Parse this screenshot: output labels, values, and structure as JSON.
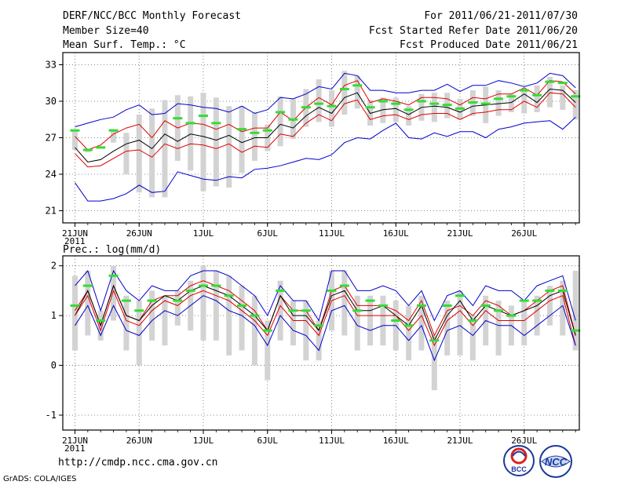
{
  "header": {
    "title": "DERF/NCC/BCC Monthly Forecast",
    "member": "Member Size=40",
    "variable": "Mean Surf. Temp.: °C",
    "period": "For 2011/06/21-2011/07/30",
    "started": "Fcst Started Refer Date 2011/06/20",
    "produced": "Fcst Produced Date 2011/06/21"
  },
  "footer": {
    "url": "http://cmdp.ncc.cma.gov.cn",
    "grads": "GrADS: COLA/IGES",
    "logo_bcc_text": "BCC",
    "logo_ncc_text": "NCC"
  },
  "colors": {
    "mean": "#000000",
    "spread": "#e00000",
    "extreme": "#0000cc",
    "bar": "#d3d3d3",
    "obs": "#33dd33",
    "grid": "#666666"
  },
  "chart_data": [
    {
      "type": "line",
      "title": "Mean Surf. Temp.: °C",
      "x_ticks": [
        "21JUN",
        "26JUN",
        "1JUL",
        "6JUL",
        "11JUL",
        "16JUL",
        "21JUL",
        "26JUL"
      ],
      "x_year_label": "2011",
      "y_ticks": [
        "21",
        "24",
        "27",
        "30",
        "33"
      ],
      "ylim": [
        20,
        34
      ],
      "days": 40,
      "series": [
        {
          "name": "ensemble max",
          "color": "#0000cc",
          "values": [
            27.9,
            28.2,
            28.5,
            28.7,
            29.3,
            29.7,
            28.9,
            29.0,
            29.8,
            29.7,
            29.5,
            29.4,
            29.1,
            29.6,
            29.0,
            29.3,
            30.3,
            30.2,
            30.6,
            31.2,
            31.0,
            32.3,
            32.1,
            30.9,
            30.9,
            30.7,
            30.7,
            30.9,
            30.9,
            31.4,
            30.8,
            31.3,
            31.3,
            31.7,
            31.5,
            31.2,
            31.5,
            32.3,
            32.1,
            31.1
          ]
        },
        {
          "name": "upper spread",
          "color": "#e00000",
          "values": [
            27.1,
            26.0,
            26.4,
            27.3,
            27.8,
            28.1,
            27.0,
            28.4,
            27.8,
            28.2,
            28.1,
            27.7,
            28.1,
            27.5,
            27.8,
            27.8,
            29.1,
            28.4,
            29.5,
            30.3,
            29.7,
            31.3,
            31.7,
            29.9,
            30.2,
            30.0,
            29.7,
            30.3,
            30.3,
            30.2,
            29.7,
            30.3,
            30.2,
            30.6,
            30.6,
            31.1,
            30.5,
            31.7,
            31.6,
            30.6
          ]
        },
        {
          "name": "ensemble mean",
          "color": "#000000",
          "values": [
            26.2,
            25.0,
            25.2,
            25.9,
            26.5,
            26.8,
            26.1,
            27.3,
            26.7,
            27.3,
            27.1,
            26.8,
            27.2,
            26.6,
            27.0,
            27.0,
            28.1,
            27.8,
            28.8,
            29.5,
            29.0,
            30.3,
            30.7,
            29.0,
            29.3,
            29.4,
            28.9,
            29.5,
            29.6,
            29.5,
            29.1,
            29.6,
            29.7,
            29.8,
            29.9,
            30.6,
            29.9,
            31.0,
            30.9,
            29.9
          ]
        },
        {
          "name": "lower spread",
          "color": "#e00000",
          "values": [
            25.7,
            24.6,
            24.7,
            25.3,
            25.9,
            26.0,
            25.4,
            26.5,
            26.1,
            26.5,
            26.4,
            26.1,
            26.5,
            25.8,
            26.3,
            26.2,
            27.3,
            27.1,
            28.2,
            28.9,
            28.4,
            29.8,
            30.1,
            28.5,
            28.8,
            28.9,
            28.5,
            28.9,
            29.0,
            29.0,
            28.5,
            29.0,
            29.1,
            29.3,
            29.3,
            30.0,
            29.5,
            30.7,
            30.6,
            29.5
          ]
        },
        {
          "name": "ensemble min",
          "color": "#0000cc",
          "values": [
            23.3,
            21.8,
            21.8,
            22.0,
            22.4,
            23.1,
            22.5,
            22.6,
            24.2,
            23.9,
            23.6,
            23.5,
            23.8,
            23.7,
            24.4,
            24.5,
            24.7,
            25.0,
            25.3,
            25.2,
            25.6,
            26.6,
            27.0,
            26.9,
            27.6,
            28.2,
            27.0,
            26.9,
            27.4,
            27.1,
            27.5,
            27.5,
            27.0,
            27.7,
            27.9,
            28.2,
            28.3,
            28.4,
            27.7,
            28.7
          ]
        }
      ],
      "bars": [
        [
          26.0,
          27.6
        ],
        [
          25.8,
          26.1
        ],
        [
          26.1,
          26.3
        ],
        [
          26.6,
          27.7
        ],
        [
          24.0,
          27.4
        ],
        [
          22.5,
          28.9
        ],
        [
          22.1,
          29.4
        ],
        [
          22.1,
          30.1
        ],
        [
          25.1,
          30.5
        ],
        [
          24.3,
          30.4
        ],
        [
          22.6,
          30.7
        ],
        [
          23.0,
          30.3
        ],
        [
          22.9,
          29.6
        ],
        [
          24.1,
          29.6
        ],
        [
          25.1,
          29.1
        ],
        [
          25.9,
          28.1
        ],
        [
          26.3,
          30.4
        ],
        [
          26.9,
          30.2
        ],
        [
          27.9,
          31.0
        ],
        [
          28.3,
          31.8
        ],
        [
          27.9,
          30.9
        ],
        [
          28.9,
          32.5
        ],
        [
          29.4,
          32.1
        ],
        [
          28.0,
          30.1
        ],
        [
          28.2,
          30.3
        ],
        [
          28.3,
          30.3
        ],
        [
          28.0,
          29.6
        ],
        [
          28.4,
          30.6
        ],
        [
          28.3,
          30.7
        ],
        [
          28.6,
          30.7
        ],
        [
          28.5,
          30.2
        ],
        [
          28.8,
          30.9
        ],
        [
          28.2,
          31.2
        ],
        [
          28.8,
          30.9
        ],
        [
          29.1,
          30.6
        ],
        [
          29.0,
          30.9
        ],
        [
          29.1,
          31.3
        ],
        [
          29.5,
          32.0
        ],
        [
          29.3,
          31.3
        ],
        [
          28.5,
          30.9
        ]
      ],
      "obs": [
        27.6,
        26.0,
        26.2,
        27.6,
        null,
        null,
        null,
        null,
        28.6,
        28.2,
        28.8,
        28.2,
        null,
        27.7,
        27.4,
        27.6,
        29.1,
        28.5,
        29.5,
        29.8,
        29.6,
        31.0,
        31.3,
        29.5,
        30.0,
        29.8,
        29.3,
        30.0,
        29.8,
        29.7,
        29.4,
        29.9,
        29.8,
        30.2,
        30.4,
        30.9,
        30.5,
        31.6,
        31.5,
        30.4
      ]
    },
    {
      "type": "line",
      "title": "Prec.: log(mm/d)",
      "x_ticks": [
        "21JUN",
        "26JUN",
        "1JUL",
        "6JUL",
        "11JUL",
        "16JUL",
        "21JUL",
        "26JUL"
      ],
      "x_year_label": "2011",
      "y_ticks": [
        "-1",
        "0",
        "1",
        "2"
      ],
      "ylim": [
        -1.3,
        2.2
      ],
      "days": 40,
      "series": [
        {
          "name": "ensemble max",
          "color": "#0000cc",
          "values": [
            1.6,
            1.9,
            1.1,
            1.9,
            1.5,
            1.3,
            1.6,
            1.5,
            1.5,
            1.8,
            1.9,
            1.9,
            1.8,
            1.6,
            1.4,
            1.0,
            1.6,
            1.3,
            1.3,
            0.9,
            1.9,
            1.9,
            1.5,
            1.5,
            1.6,
            1.5,
            1.2,
            1.5,
            0.9,
            1.4,
            1.5,
            1.2,
            1.6,
            1.5,
            1.5,
            1.3,
            1.6,
            1.7,
            1.8,
            0.9
          ]
        },
        {
          "name": "upper spread",
          "color": "#e00000",
          "values": [
            1.1,
            1.5,
            0.8,
            1.6,
            1.0,
            0.9,
            1.3,
            1.4,
            1.4,
            1.6,
            1.7,
            1.6,
            1.5,
            1.3,
            1.1,
            0.7,
            1.4,
            1.1,
            1.1,
            0.7,
            1.5,
            1.6,
            1.2,
            1.2,
            1.2,
            1.1,
            0.9,
            1.3,
            0.6,
            1.1,
            1.2,
            1.0,
            1.3,
            1.2,
            1.0,
            1.1,
            1.3,
            1.5,
            1.6,
            0.6
          ]
        },
        {
          "name": "ensemble mean",
          "color": "#000000",
          "values": [
            1.0,
            1.5,
            0.8,
            1.6,
            1.0,
            0.9,
            1.2,
            1.4,
            1.3,
            1.5,
            1.6,
            1.5,
            1.4,
            1.2,
            1.0,
            0.7,
            1.4,
            1.0,
            1.0,
            0.7,
            1.4,
            1.5,
            1.1,
            1.1,
            1.2,
            1.0,
            0.8,
            1.2,
            0.5,
            1.0,
            1.3,
            0.9,
            1.2,
            1.1,
            1.0,
            1.1,
            1.2,
            1.4,
            1.5,
            0.6
          ]
        },
        {
          "name": "lower spread",
          "color": "#e00000",
          "values": [
            1.0,
            1.4,
            0.7,
            1.5,
            0.9,
            0.8,
            1.1,
            1.3,
            1.2,
            1.4,
            1.5,
            1.4,
            1.3,
            1.1,
            0.9,
            0.6,
            1.2,
            0.9,
            0.9,
            0.6,
            1.3,
            1.4,
            1.0,
            1.0,
            1.0,
            1.0,
            0.7,
            1.0,
            0.4,
            0.9,
            1.1,
            0.8,
            1.1,
            0.9,
            0.9,
            0.9,
            1.1,
            1.3,
            1.4,
            0.4
          ]
        },
        {
          "name": "ensemble min",
          "color": "#0000cc",
          "values": [
            0.8,
            1.2,
            0.6,
            1.2,
            0.7,
            0.6,
            0.9,
            1.1,
            1.0,
            1.2,
            1.4,
            1.3,
            1.1,
            1.0,
            0.8,
            0.4,
            1.0,
            0.7,
            0.6,
            0.3,
            1.1,
            1.2,
            0.8,
            0.7,
            0.8,
            0.8,
            0.5,
            0.8,
            0.1,
            0.7,
            0.8,
            0.6,
            0.9,
            0.8,
            0.8,
            0.6,
            0.8,
            1.0,
            1.2,
            0.4
          ]
        }
      ],
      "bars": [
        [
          0.3,
          1.8
        ],
        [
          0.6,
          1.9
        ],
        [
          0.5,
          1.1
        ],
        [
          0.9,
          2.0
        ],
        [
          0.3,
          1.4
        ],
        [
          0.0,
          1.3
        ],
        [
          0.5,
          1.5
        ],
        [
          0.4,
          1.4
        ],
        [
          0.8,
          1.5
        ],
        [
          0.7,
          1.7
        ],
        [
          0.5,
          2.0
        ],
        [
          0.5,
          1.9
        ],
        [
          0.2,
          1.8
        ],
        [
          0.3,
          1.6
        ],
        [
          0.0,
          1.4
        ],
        [
          -0.3,
          0.9
        ],
        [
          0.5,
          1.7
        ],
        [
          0.4,
          1.3
        ],
        [
          0.1,
          1.3
        ],
        [
          0.1,
          0.9
        ],
        [
          0.7,
          1.9
        ],
        [
          0.6,
          1.9
        ],
        [
          0.3,
          1.4
        ],
        [
          0.4,
          1.4
        ],
        [
          0.4,
          1.4
        ],
        [
          0.3,
          1.3
        ],
        [
          0.1,
          1.2
        ],
        [
          0.3,
          1.4
        ],
        [
          -0.5,
          0.6
        ],
        [
          0.2,
          1.3
        ],
        [
          0.2,
          1.5
        ],
        [
          0.1,
          1.0
        ],
        [
          0.4,
          1.4
        ],
        [
          0.2,
          1.3
        ],
        [
          0.4,
          1.2
        ],
        [
          0.4,
          1.3
        ],
        [
          0.6,
          1.4
        ],
        [
          0.8,
          1.6
        ],
        [
          0.6,
          1.7
        ],
        [
          0.3,
          1.9
        ]
      ],
      "obs": [
        1.2,
        1.6,
        0.9,
        1.8,
        1.3,
        1.1,
        1.3,
        null,
        1.3,
        1.5,
        1.6,
        1.6,
        1.4,
        1.2,
        1.0,
        0.7,
        1.5,
        1.1,
        1.1,
        0.8,
        1.5,
        1.6,
        1.1,
        1.3,
        1.2,
        0.9,
        0.8,
        1.2,
        0.5,
        1.2,
        1.4,
        0.9,
        1.2,
        1.1,
        1.0,
        1.3,
        1.3,
        1.5,
        1.5,
        0.7
      ]
    }
  ]
}
